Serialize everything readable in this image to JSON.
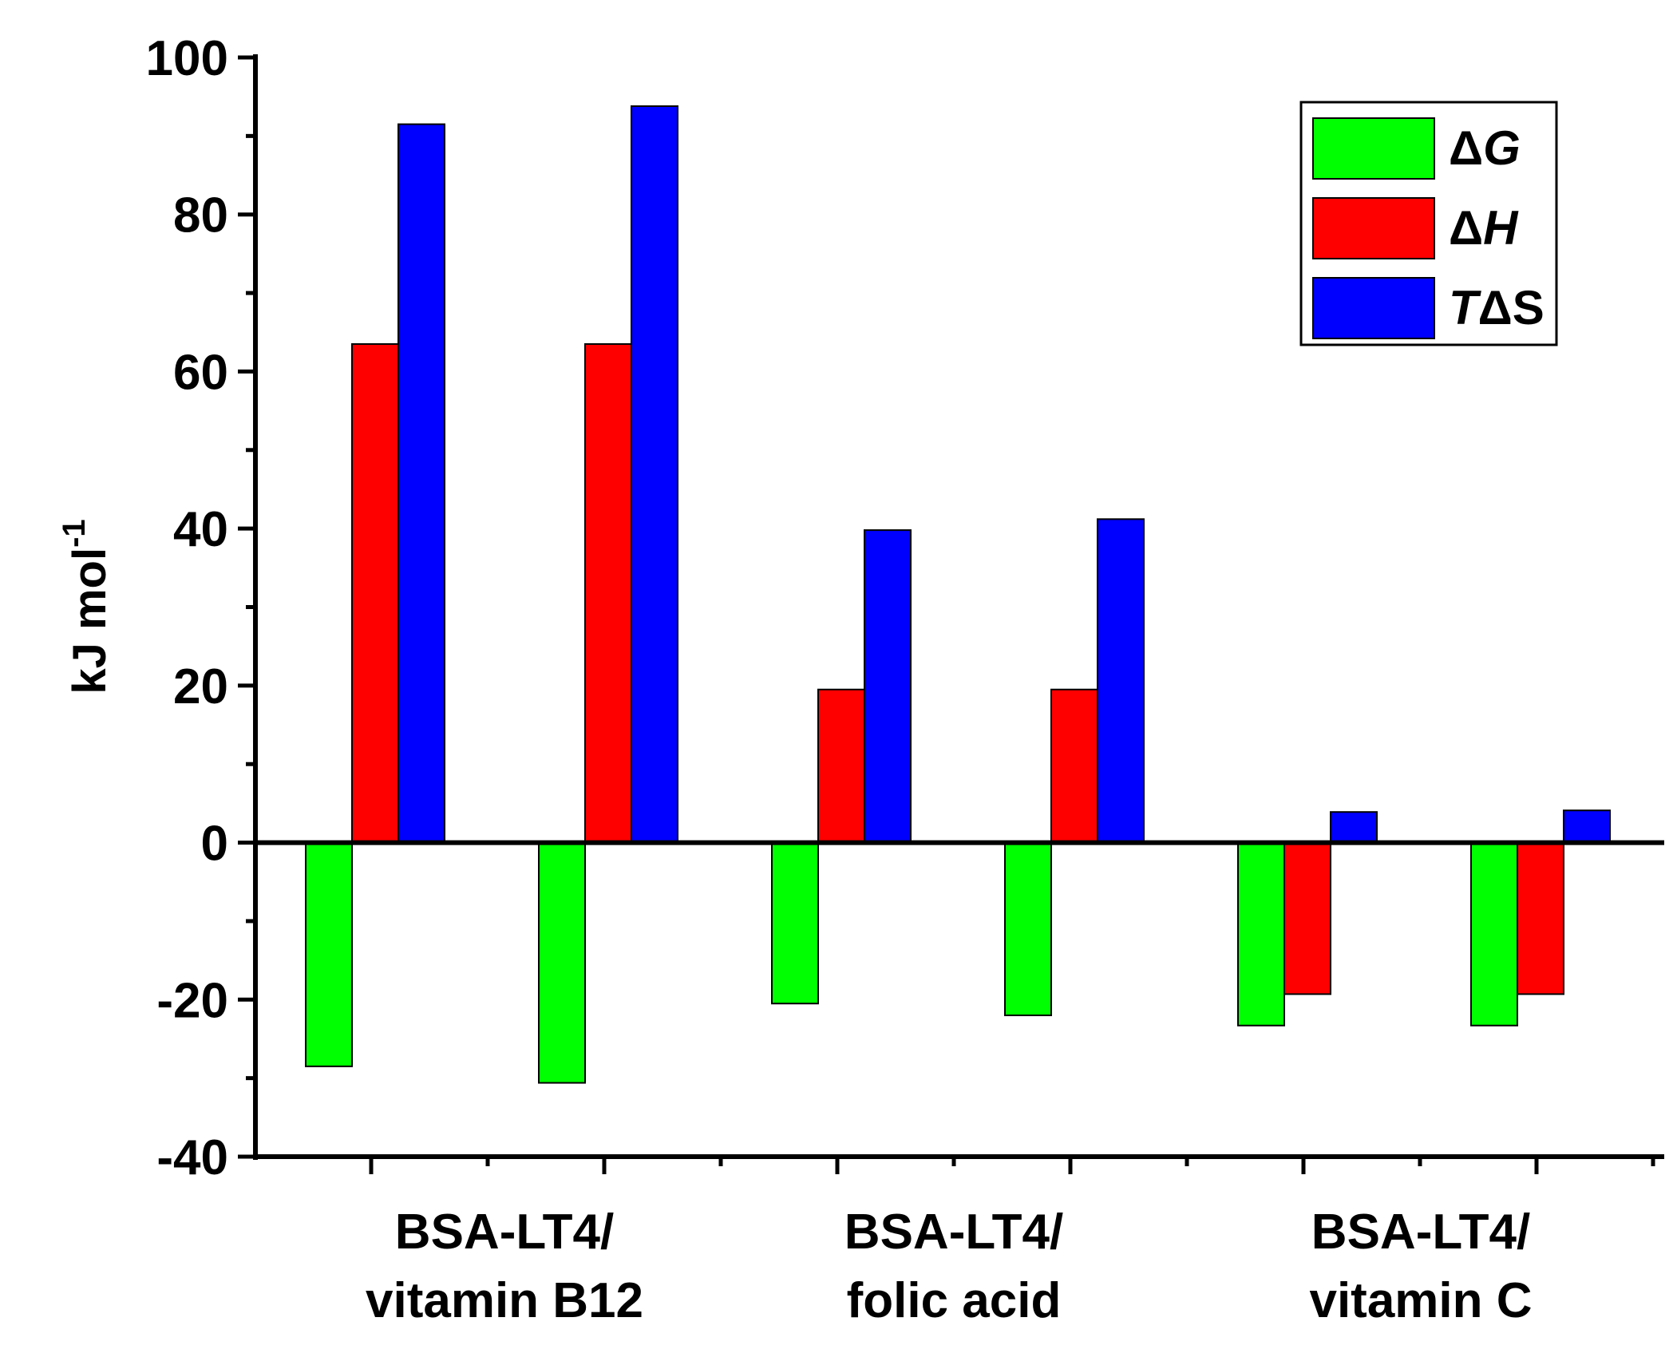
{
  "chart_data": {
    "type": "bar",
    "title": "",
    "xlabel": "",
    "ylabel": "kJ mol",
    "ylabel_superscript": "-1",
    "ylim": [
      -40,
      100
    ],
    "yticks": [
      -40,
      -20,
      0,
      20,
      40,
      60,
      80,
      100
    ],
    "ytick_labels": [
      "-40",
      "-20",
      "0",
      "20",
      "40",
      "60",
      "80",
      "100"
    ],
    "group_labels": [
      {
        "line1": "BSA-LT4/",
        "line2": "vitamin B12"
      },
      {
        "line1": "BSA-LT4/",
        "line2": "folic acid"
      },
      {
        "line1": "BSA-LT4/",
        "line2": "vitamin C"
      }
    ],
    "series": [
      {
        "name": "ΔG",
        "symbol": "Δ",
        "italic": "G",
        "order": "symbol-first",
        "color": "#00ff00",
        "values": [
          -28.5,
          -30.6,
          -20.5,
          -22.0,
          -23.3,
          -23.3
        ]
      },
      {
        "name": "ΔH",
        "symbol": "Δ",
        "italic": "H",
        "order": "symbol-first",
        "color": "#ff0000",
        "values": [
          63.5,
          63.5,
          19.5,
          19.5,
          -19.3,
          -19.3
        ]
      },
      {
        "name": "TΔS",
        "symbol": "ΔS",
        "italic": "T",
        "order": "italic-first",
        "color": "#0000ff",
        "values": [
          91.5,
          93.8,
          39.8,
          41.2,
          3.9,
          4.1
        ]
      }
    ],
    "legend_position": "top-right",
    "grid": false
  }
}
